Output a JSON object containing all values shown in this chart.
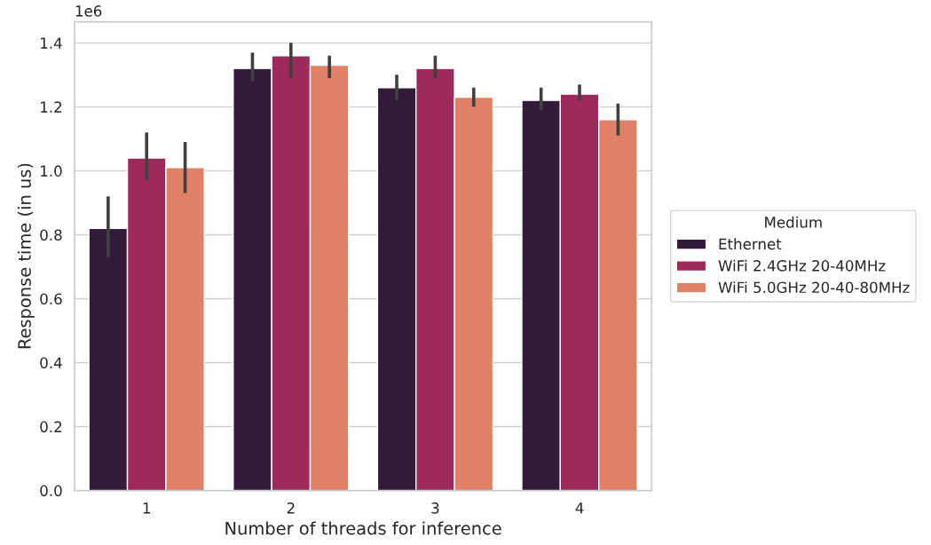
{
  "chart_data": {
    "type": "bar",
    "xlabel": "Number of threads for inference",
    "ylabel": "Response time (in us)",
    "legend_title": "Medium",
    "annotations": [
      "1e6"
    ],
    "categories": [
      "1",
      "2",
      "3",
      "4"
    ],
    "series": [
      {
        "name": "Ethernet",
        "color": "#331a38",
        "values": [
          0.82,
          1.32,
          1.26,
          1.22
        ],
        "errors": [
          [
            0.73,
            0.92
          ],
          [
            1.28,
            1.37
          ],
          [
            1.22,
            1.3
          ],
          [
            1.19,
            1.26
          ]
        ]
      },
      {
        "name": "WiFi 2.4GHz 20-40MHz",
        "color": "#9e2a5c",
        "values": [
          1.04,
          1.36,
          1.32,
          1.24
        ],
        "errors": [
          [
            0.97,
            1.12
          ],
          [
            1.29,
            1.4
          ],
          [
            1.29,
            1.36
          ],
          [
            1.22,
            1.27
          ]
        ]
      },
      {
        "name": "WiFi 5.0GHz 20-40-80MHz",
        "color": "#e08064",
        "values": [
          1.01,
          1.33,
          1.23,
          1.16
        ],
        "errors": [
          [
            0.93,
            1.09
          ],
          [
            1.29,
            1.36
          ],
          [
            1.2,
            1.26
          ],
          [
            1.11,
            1.21
          ]
        ]
      }
    ],
    "ylim": [
      0,
      1.466
    ],
    "yticks": [
      {
        "value": 0,
        "label": "0.0"
      },
      0.2,
      0.4,
      0.6,
      0.8,
      {
        "value": 1,
        "label": "1.0"
      },
      1.2,
      1.4
    ],
    "grid": "y",
    "legend": "right"
  }
}
